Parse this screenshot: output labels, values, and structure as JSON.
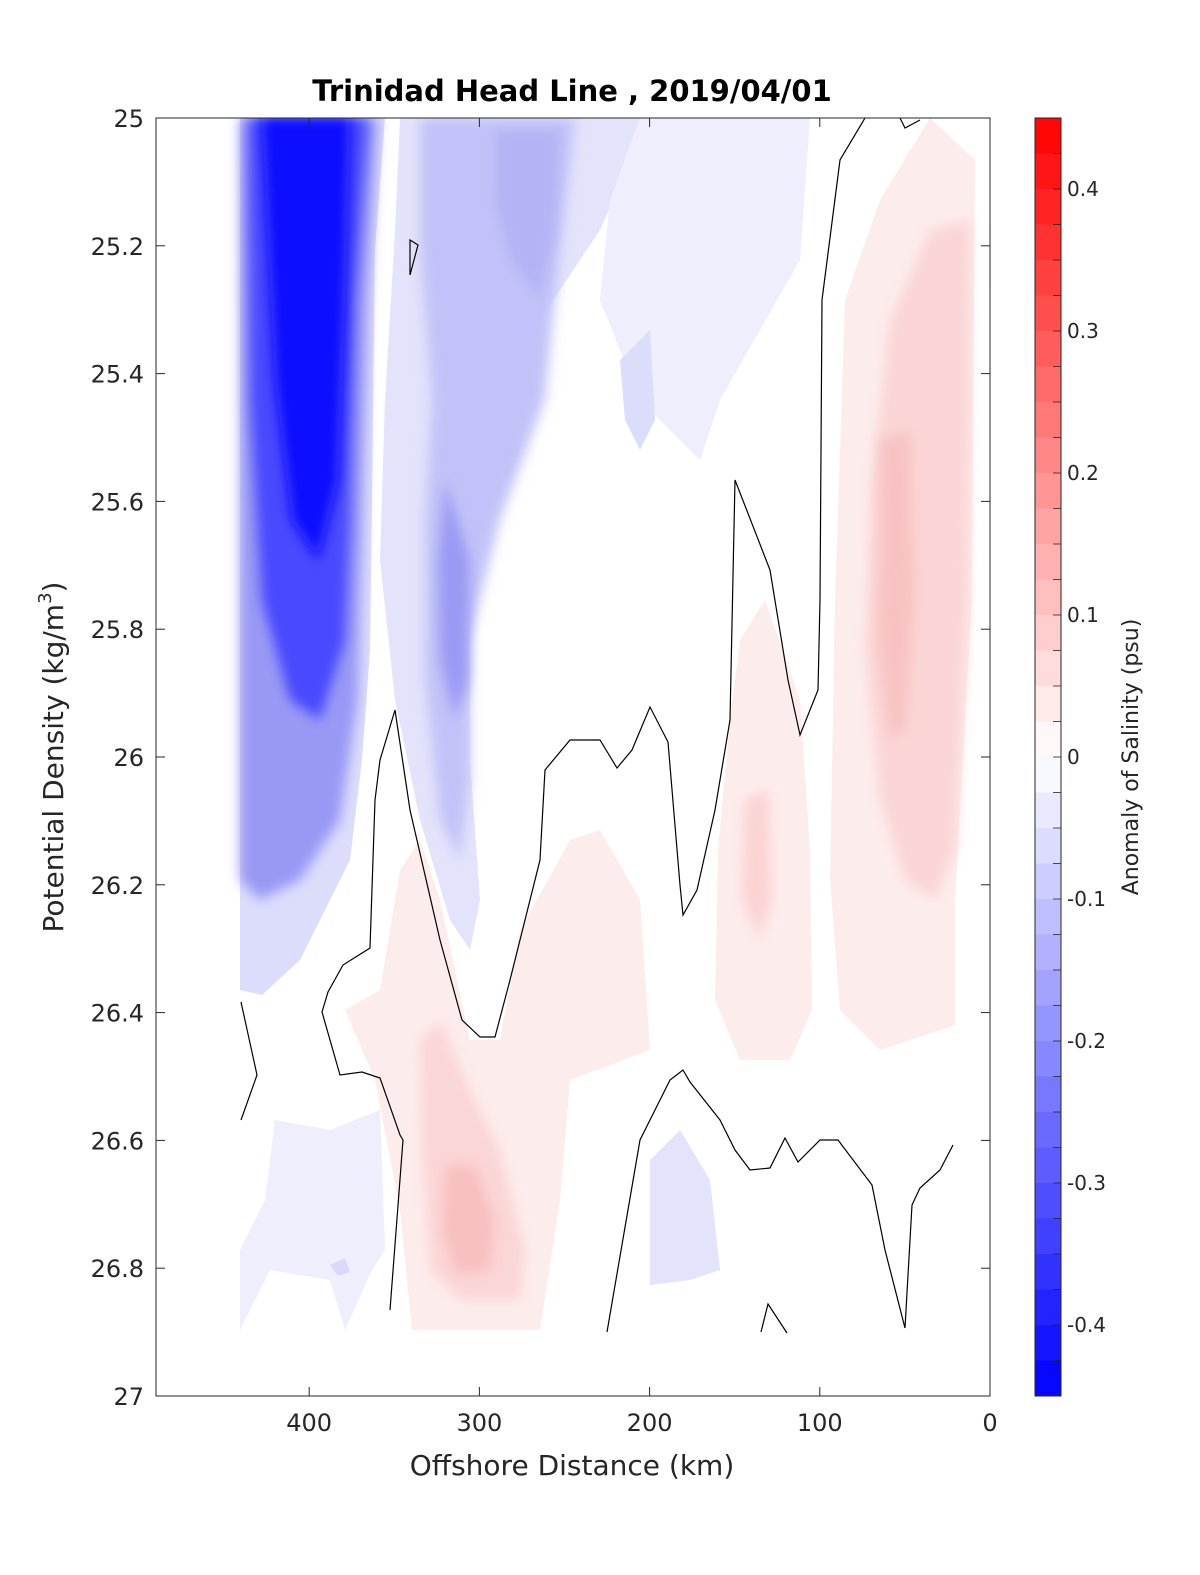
{
  "chart_data": {
    "type": "contour",
    "title": "Trinidad Head Line , 2019/04/01",
    "xlabel": "Offshore Distance (km)",
    "ylabel_main": "Potential Density (kg/m",
    "ylabel_sup": "3",
    "ylabel_close": ")",
    "xlim": [
      490,
      0
    ],
    "ylim": [
      25,
      27
    ],
    "y_reversed": true,
    "x_ticks": [
      "400",
      "300",
      "200",
      "100",
      "0"
    ],
    "y_ticks": [
      "25",
      "25.2",
      "25.4",
      "25.6",
      "25.8",
      "26",
      "26.2",
      "26.4",
      "26.6",
      "26.8",
      "27"
    ],
    "grid": false,
    "colorbar": {
      "label": "Anomaly of Salinity (psu)",
      "range": [
        -0.45,
        0.45
      ],
      "ticks": [
        "0.4",
        "0.3",
        "0.2",
        "0.1",
        "0",
        "-0.1",
        "-0.2",
        "-0.3",
        "-0.4"
      ],
      "low_color": "#0000ff",
      "mid_color": "#ffffff",
      "high_color": "#ff0000",
      "levels": 36
    },
    "regions": [
      {
        "name": "strong-negative-anomaly",
        "x": [
          440,
          360
        ],
        "y": [
          25.0,
          26.4
        ],
        "peak": -0.45
      },
      {
        "name": "negative-core-300km",
        "x": [
          340,
          270
        ],
        "y": [
          25.4,
          26.4
        ],
        "peak": -0.2
      },
      {
        "name": "negative-near-surface-270km",
        "x": [
          300,
          240
        ],
        "y": [
          25.0,
          25.4
        ],
        "peak": -0.15
      },
      {
        "name": "positive-deep-300km",
        "x": [
          350,
          230
        ],
        "y": [
          26.2,
          26.9
        ],
        "peak": 0.08
      },
      {
        "name": "positive-nearshore-60km",
        "x": [
          90,
          20
        ],
        "y": [
          25.1,
          26.4
        ],
        "peak": 0.1
      },
      {
        "name": "positive-150km",
        "x": [
          160,
          100
        ],
        "y": [
          25.8,
          26.5
        ],
        "peak": 0.05
      },
      {
        "name": "negative-deep-380km",
        "x": [
          440,
          340
        ],
        "y": [
          26.5,
          26.9
        ],
        "peak": -0.05
      },
      {
        "name": "negative-deep-190km",
        "x": [
          200,
          160
        ],
        "y": [
          26.5,
          26.8
        ],
        "peak": -0.05
      }
    ]
  }
}
